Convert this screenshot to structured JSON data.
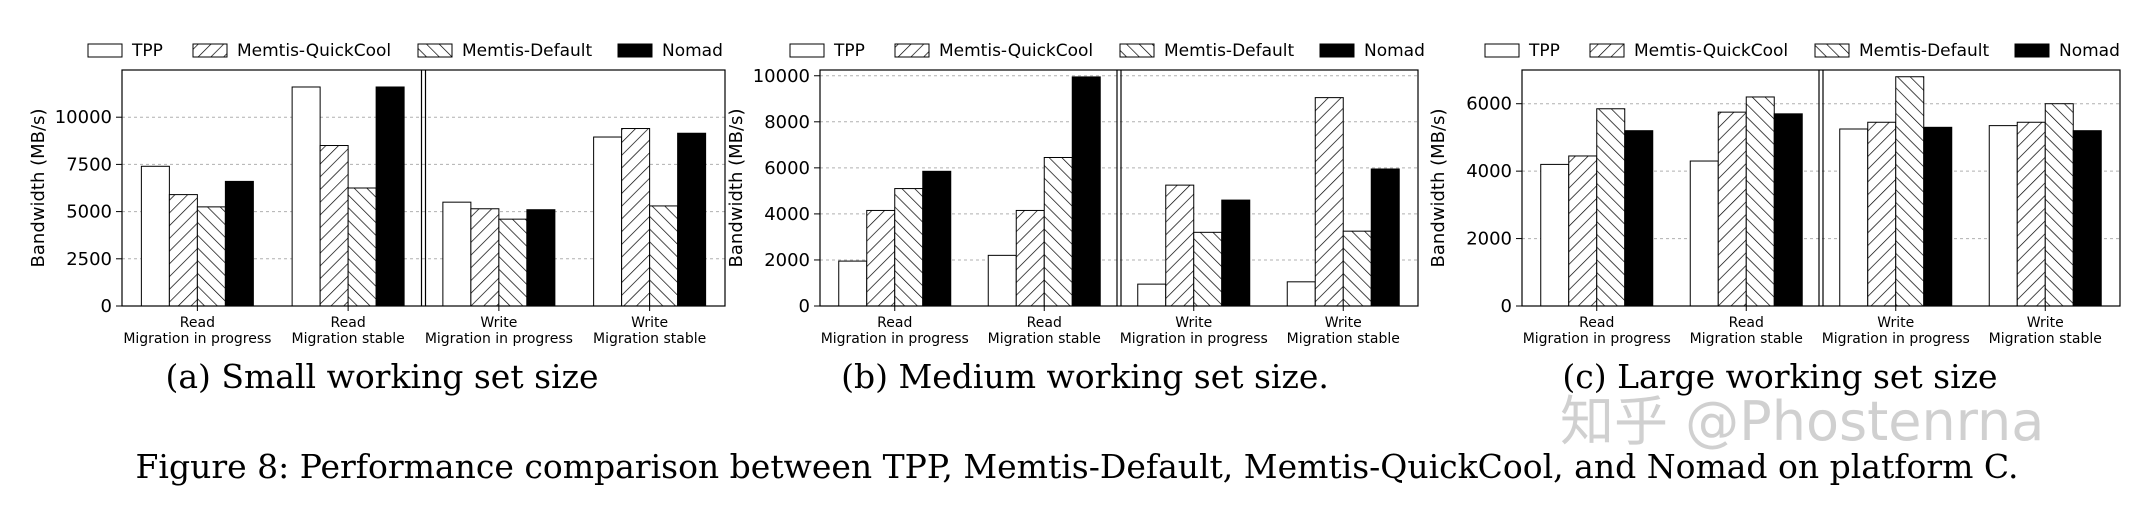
{
  "figure_caption": "Figure 8: Performance comparison between TPP, Memtis-Default, Memtis-QuickCool, and Nomad on platform C.",
  "watermark": "知乎 @Phostenrna",
  "legend": [
    "TPP",
    "Memtis-QuickCool",
    "Memtis-Default",
    "Nomad"
  ],
  "series_styles": [
    {
      "fill": "#ffffff",
      "pattern": "none"
    },
    {
      "fill": "#ffffff",
      "pattern": "forward-hatch"
    },
    {
      "fill": "#ffffff",
      "pattern": "back-hatch"
    },
    {
      "fill": "#000000",
      "pattern": "solid"
    }
  ],
  "chart_data": [
    {
      "type": "bar",
      "title": "(a) Small working set size",
      "ylabel": "Bandwidth (MB/s)",
      "ylim": [
        0,
        12500
      ],
      "yticks": [
        0,
        2500,
        5000,
        7500,
        10000
      ],
      "grid": true,
      "legend_position": "top",
      "categories": [
        [
          "Read",
          "Migration in progress"
        ],
        [
          "Read",
          "Migration stable"
        ],
        [
          "Write",
          "Migration in progress"
        ],
        [
          "Write",
          "Migration stable"
        ]
      ],
      "series": [
        {
          "name": "TPP",
          "values": [
            7400,
            11600,
            5500,
            8950
          ]
        },
        {
          "name": "Memtis-QuickCool",
          "values": [
            5900,
            8500,
            5150,
            9400
          ]
        },
        {
          "name": "Memtis-Default",
          "values": [
            5250,
            6250,
            4600,
            5300
          ]
        },
        {
          "name": "Nomad",
          "values": [
            6600,
            11600,
            5100,
            9150
          ]
        }
      ]
    },
    {
      "type": "bar",
      "title": "(b) Medium working set size.",
      "ylabel": "Bandwidth (MB/s)",
      "ylim": [
        0,
        10250
      ],
      "yticks": [
        0,
        2000,
        4000,
        6000,
        8000,
        10000
      ],
      "grid": true,
      "legend_position": "top",
      "categories": [
        [
          "Read",
          "Migration in progress"
        ],
        [
          "Read",
          "Migration stable"
        ],
        [
          "Write",
          "Migration in progress"
        ],
        [
          "Write",
          "Migration stable"
        ]
      ],
      "series": [
        {
          "name": "TPP",
          "values": [
            1950,
            2200,
            950,
            1050
          ]
        },
        {
          "name": "Memtis-QuickCool",
          "values": [
            4150,
            4150,
            5250,
            9050
          ]
        },
        {
          "name": "Memtis-Default",
          "values": [
            5100,
            6450,
            3200,
            3250
          ]
        },
        {
          "name": "Nomad",
          "values": [
            5850,
            9950,
            4600,
            5950
          ]
        }
      ]
    },
    {
      "type": "bar",
      "title": "(c) Large working set size",
      "ylabel": "Bandwidth (MB/s)",
      "ylim": [
        0,
        7000
      ],
      "yticks": [
        0,
        2000,
        4000,
        6000
      ],
      "grid": true,
      "legend_position": "top",
      "categories": [
        [
          "Read",
          "Migration in progress"
        ],
        [
          "Read",
          "Migration stable"
        ],
        [
          "Write",
          "Migration in progress"
        ],
        [
          "Write",
          "Migration stable"
        ]
      ],
      "series": [
        {
          "name": "TPP",
          "values": [
            4200,
            4300,
            5250,
            5350
          ]
        },
        {
          "name": "Memtis-QuickCool",
          "values": [
            4450,
            5750,
            5450,
            5450
          ]
        },
        {
          "name": "Memtis-Default",
          "values": [
            5850,
            6200,
            6800,
            6000
          ]
        },
        {
          "name": "Nomad",
          "values": [
            5200,
            5700,
            5300,
            5200
          ]
        }
      ]
    }
  ]
}
